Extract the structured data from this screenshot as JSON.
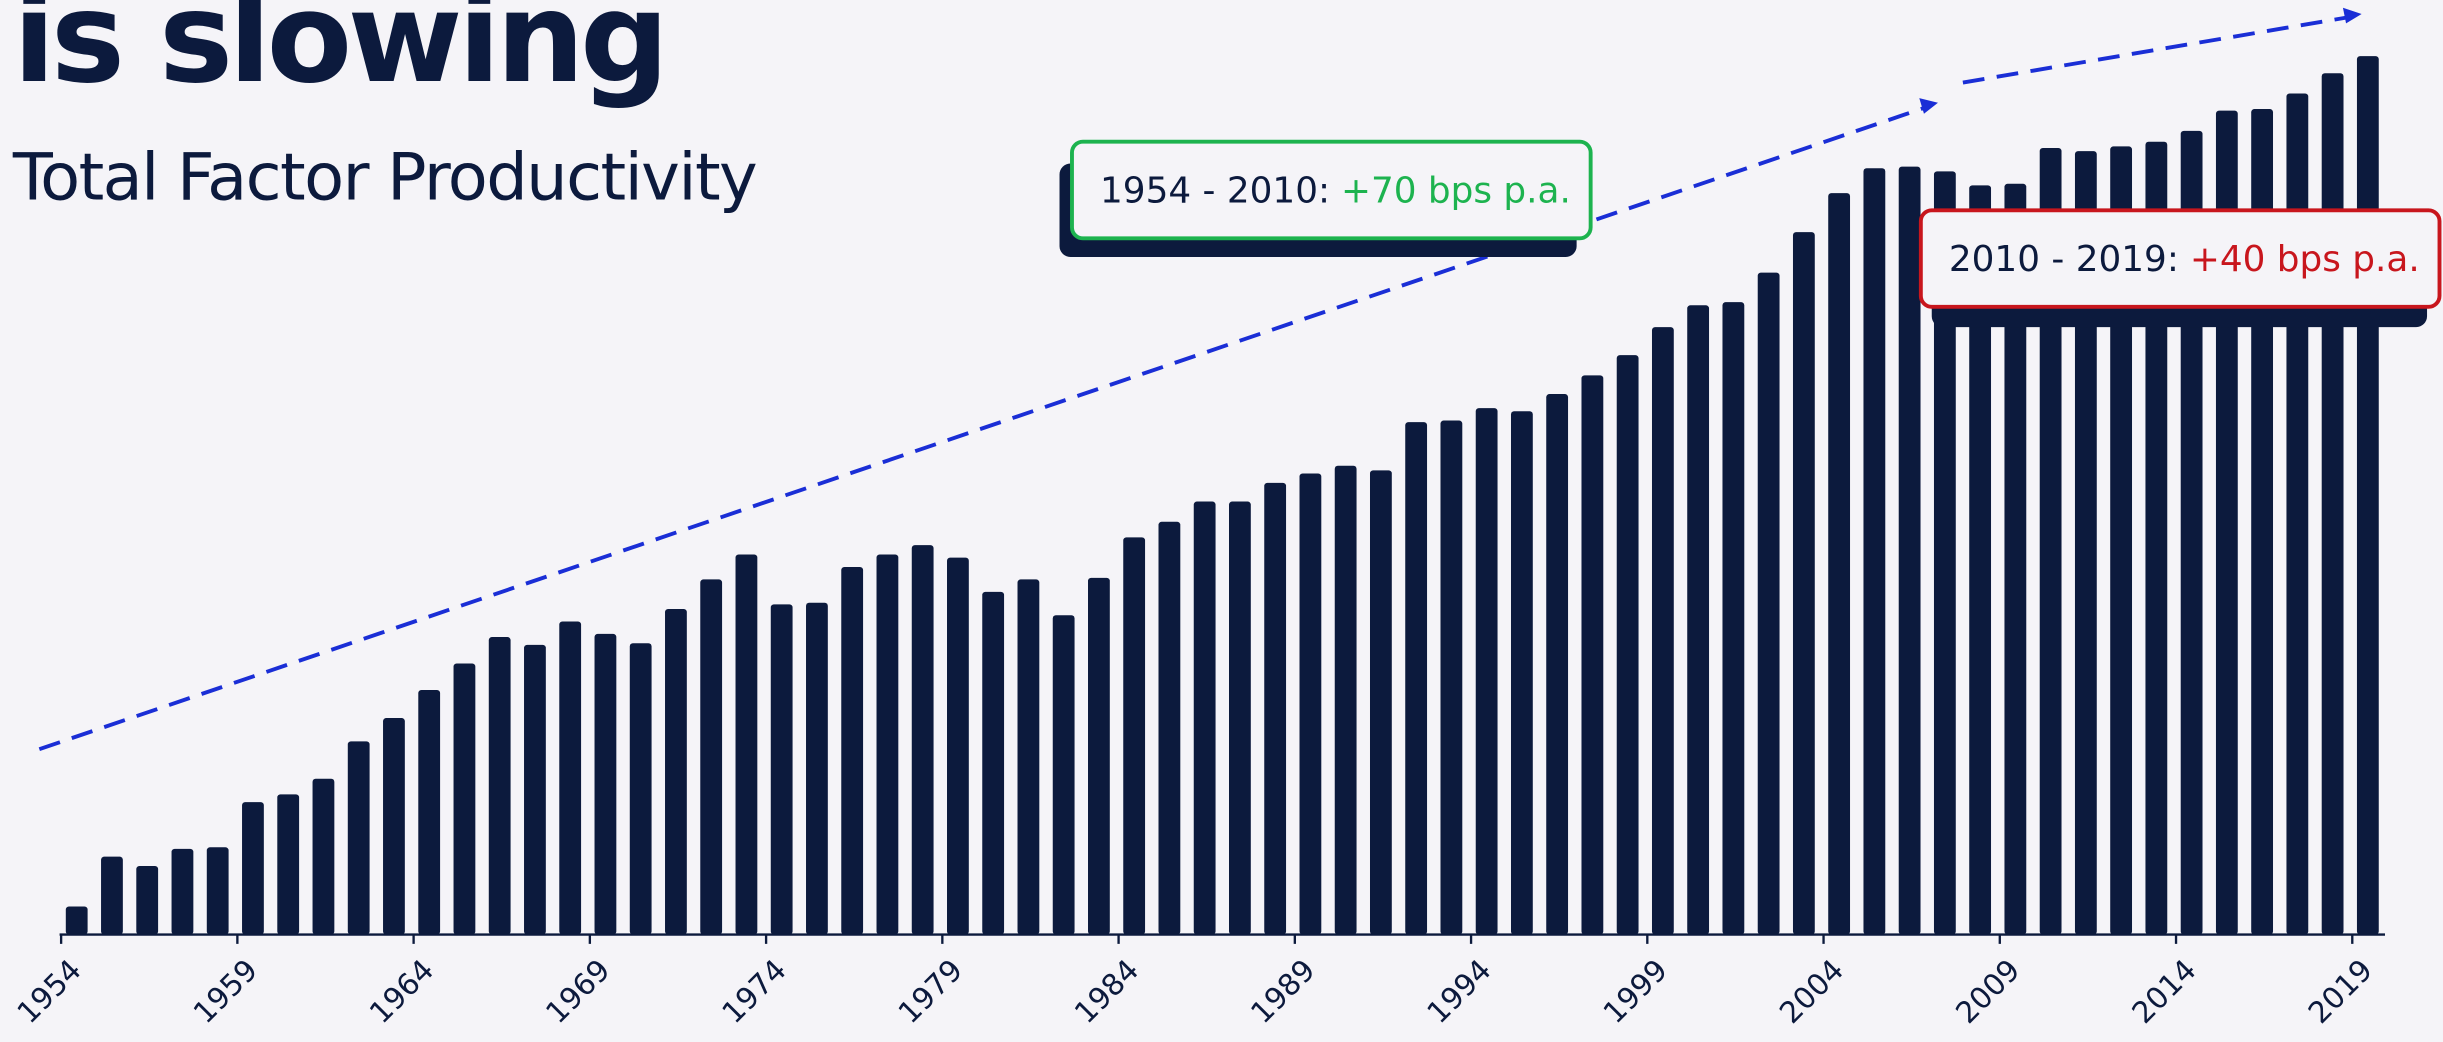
{
  "chart_data": {
    "type": "bar",
    "title": "is slowing",
    "subtitle": "Total Factor Productivity",
    "categories": [
      "1954",
      null,
      null,
      null,
      null,
      "1959",
      null,
      null,
      null,
      null,
      "1964",
      null,
      null,
      null,
      null,
      "1969",
      null,
      null,
      null,
      null,
      "1974",
      null,
      null,
      null,
      null,
      "1979",
      null,
      null,
      null,
      null,
      "1984",
      null,
      null,
      null,
      null,
      "1989",
      null,
      null,
      null,
      null,
      "1994",
      null,
      null,
      null,
      null,
      "1999",
      null,
      null,
      null,
      null,
      "2004",
      null,
      null,
      null,
      null,
      "2009",
      null,
      null,
      null,
      null,
      "2014",
      null,
      null,
      null,
      null,
      "2019"
    ],
    "values": [
      18,
      50,
      44,
      55,
      56,
      85,
      90,
      100,
      124,
      139,
      157,
      174,
      191,
      186,
      201,
      193,
      187,
      209,
      228,
      244,
      212,
      213,
      236,
      244,
      250,
      242,
      220,
      228,
      205,
      229,
      255,
      265,
      278,
      278,
      290,
      296,
      301,
      298,
      329,
      330,
      338,
      336,
      347,
      359,
      372,
      390,
      404,
      406,
      425,
      451,
      476,
      492,
      493,
      490,
      481,
      482,
      505,
      503,
      506,
      509,
      516,
      529,
      530,
      540,
      553,
      564
    ],
    "color": "#0c1a3d",
    "ylim": [
      0,
      600
    ],
    "annotations": [
      {
        "text": "1954 - 2010:",
        "highlight": "+70 bps p.a.",
        "color": "#1db34f"
      },
      {
        "text": "2010 - 2019:",
        "highlight": "+40 bps p.a.",
        "color": "#c8161d"
      }
    ]
  }
}
